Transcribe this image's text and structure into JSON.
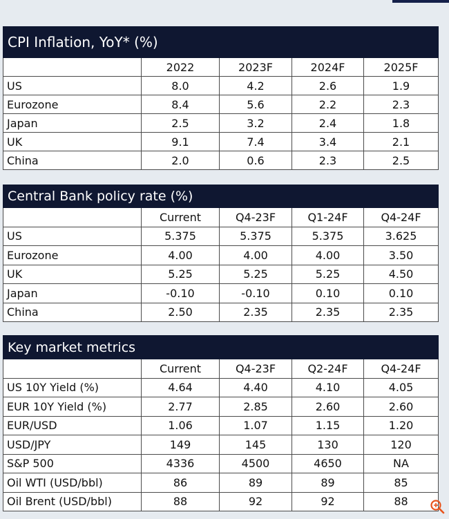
{
  "cpi": {
    "title": "CPI Inflation, YoY* (%)",
    "columns": [
      "",
      "2022",
      "2023F",
      "2024F",
      "2025F"
    ],
    "rows": [
      [
        "US",
        "8.0",
        "4.2",
        "2.6",
        "1.9"
      ],
      [
        "Eurozone",
        "8.4",
        "5.6",
        "2.2",
        "2.3"
      ],
      [
        "Japan",
        "2.5",
        "3.2",
        "2.4",
        "1.8"
      ],
      [
        "UK",
        "9.1",
        "7.4",
        "3.4",
        "2.1"
      ],
      [
        "China",
        "2.0",
        "0.6",
        "2.3",
        "2.5"
      ]
    ]
  },
  "policy": {
    "title": "Central Bank policy rate (%)",
    "columns": [
      "",
      "Current",
      "Q4-23F",
      "Q1-24F",
      "Q4-24F"
    ],
    "rows": [
      [
        "US",
        "5.375",
        "5.375",
        "5.375",
        "3.625"
      ],
      [
        "Eurozone",
        "4.00",
        "4.00",
        "4.00",
        "3.50"
      ],
      [
        "UK",
        "5.25",
        "5.25",
        "5.25",
        "4.50"
      ],
      [
        "Japan",
        "-0.10",
        "-0.10",
        "0.10",
        "0.10"
      ],
      [
        "China",
        "2.50",
        "2.35",
        "2.35",
        "2.35"
      ]
    ]
  },
  "market": {
    "title": "Key market metrics",
    "columns": [
      "",
      "Current",
      "Q4-23F",
      "Q2-24F",
      "Q4-24F"
    ],
    "rows": [
      [
        "US 10Y Yield (%)",
        "4.64",
        "4.40",
        "4.10",
        "4.05"
      ],
      [
        "EUR 10Y Yield (%)",
        "2.77",
        "2.85",
        "2.60",
        "2.60"
      ],
      [
        "EUR/USD",
        "1.06",
        "1.07",
        "1.15",
        "1.20"
      ],
      [
        "USD/JPY",
        "149",
        "145",
        "130",
        "120"
      ],
      [
        "S&P 500",
        "4336",
        "4500",
        "4650",
        "NA"
      ],
      [
        "Oil WTI  (USD/bbl)",
        "86",
        "89",
        "89",
        "85"
      ],
      [
        "Oil Brent (USD/bbl)",
        "88",
        "92",
        "92",
        "88"
      ]
    ]
  },
  "colors": {
    "header_bg": "#0f1731",
    "page_bg": "#e6ebf0",
    "accent": "#e8541c"
  },
  "icons": {
    "corner": "zoom-icon"
  }
}
